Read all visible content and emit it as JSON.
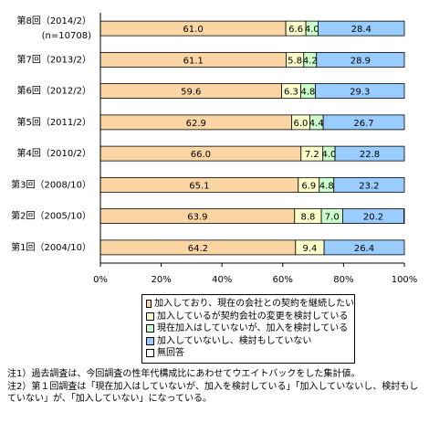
{
  "chart_data": {
    "type": "stacked_barh",
    "categories": [
      "第8回（2014/2）",
      "第7回（2013/2）",
      "第6回（2012/2）",
      "第5回（2011/2）",
      "第4回（2010/2）",
      "第3回（2008/10）",
      "第2回（2005/10）",
      "第1回（2004/10）"
    ],
    "sample_note": "(n=10708)",
    "series": [
      {
        "name": "加入しており、現在の会社との契約を継続したい",
        "color": "#fcd5a5",
        "values": [
          61.0,
          61.1,
          59.6,
          62.9,
          66.0,
          65.1,
          63.9,
          64.2
        ],
        "value_labels": [
          "61.0",
          "61.1",
          "59.6",
          "62.9",
          "66.0",
          "65.1",
          "63.9",
          "64.2"
        ]
      },
      {
        "name": "加入しているが契約会社の変更を検討している",
        "color": "#ffffcc",
        "values": [
          6.6,
          5.8,
          6.3,
          6.0,
          7.2,
          6.9,
          8.8,
          9.4
        ],
        "value_labels": [
          "6.6",
          "5.8",
          "6.3",
          "6.0",
          "7.2",
          "6.9",
          "8.8",
          "9.4"
        ]
      },
      {
        "name": "現在加入はしていないが、加入を検討している",
        "color": "#ccffcc",
        "values": [
          4.0,
          4.2,
          4.8,
          4.4,
          4.0,
          4.8,
          7.0,
          null
        ],
        "value_labels": [
          "4.0",
          "4.2",
          "4.8",
          "4.4",
          "4.0",
          "4.8",
          "7.0",
          null
        ]
      },
      {
        "name": "加入していないし、検討もしていない",
        "color": "#99ccff",
        "values": [
          28.4,
          28.9,
          29.3,
          26.7,
          22.8,
          23.2,
          20.2,
          26.4
        ],
        "value_labels": [
          "28.4",
          "28.9",
          "29.3",
          "26.7",
          "22.8",
          "23.2",
          "20.2",
          "26.4"
        ]
      },
      {
        "name": "無回答",
        "color": "#ffffff",
        "values": [
          0,
          0,
          0,
          0,
          0,
          0,
          0.1,
          0
        ]
      }
    ],
    "xlim": [
      0,
      100
    ],
    "xticks": [
      {
        "value": 0,
        "label": "0%"
      },
      {
        "value": 20,
        "label": "20%"
      },
      {
        "value": 40,
        "label": "40%"
      },
      {
        "value": 60,
        "label": "60%"
      },
      {
        "value": 80,
        "label": "80%"
      },
      {
        "value": 100,
        "label": "100%"
      }
    ],
    "notes": [
      "注1）過去調査は、今回調査の性年代構成比にあわせてウエイトバックをした集計値。",
      "注2）第１回調査は「現在加入はしていないが、加入を検討している」「加入していないし、検討もしていない」が、「加入していない」になっている。"
    ]
  }
}
